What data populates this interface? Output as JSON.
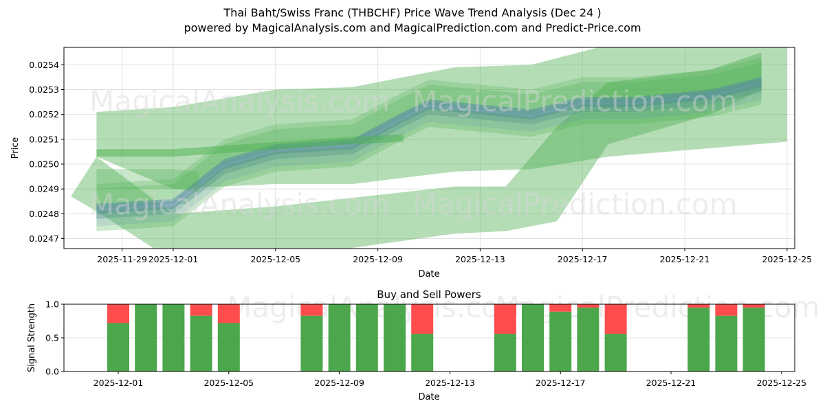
{
  "header": {
    "title": "Thai Baht/Swiss Franc (THBCHF) Price Wave Trend Analysis (Dec 24 )",
    "subtitle": "powered by MagicalAnalysis.com and MagicalPrediction.com and Predict-Price.com"
  },
  "watermarks": [
    "MagicalAnalysis.com",
    "MagicalPrediction.com"
  ],
  "colors": {
    "band_green": "#4caf50",
    "band_blue": "#6b7fe0",
    "buy": "#4ca64c",
    "sell": "#ff4c4c",
    "grid": "#e0e0e0"
  },
  "chart_data": [
    {
      "type": "area",
      "title": "",
      "xlabel": "Date",
      "ylabel": "Price",
      "ylim": [
        0.02466,
        0.02547
      ],
      "grid": true,
      "x_ticks": [
        "2025-11-29",
        "2025-12-01",
        "2025-12-05",
        "2025-12-09",
        "2025-12-13",
        "2025-12-17",
        "2025-12-21",
        "2025-12-25"
      ],
      "y_ticks": [
        "0.0247",
        "0.0248",
        "0.0249",
        "0.0250",
        "0.0251",
        "0.0252",
        "0.0253",
        "0.0254"
      ],
      "central_trend": {
        "dates": [
          "2025-11-28",
          "2025-12-01",
          "2025-12-03",
          "2025-12-05",
          "2025-12-08",
          "2025-12-10",
          "2025-12-11",
          "2025-12-15",
          "2025-12-17",
          "2025-12-19",
          "2025-12-22",
          "2025-12-24"
        ],
        "values": [
          0.02481,
          0.02483,
          0.02499,
          0.02505,
          0.02507,
          0.02518,
          0.02523,
          0.02519,
          0.02524,
          0.02524,
          0.02527,
          0.02532
        ]
      },
      "bands": [
        {
          "name": "wide-upper",
          "x": [
            "2025-11-28",
            "2025-12-01",
            "2025-12-05",
            "2025-12-08",
            "2025-12-12",
            "2025-12-15",
            "2025-12-18",
            "2025-12-25"
          ],
          "upper": [
            0.02521,
            0.02523,
            0.0253,
            0.02531,
            0.02539,
            0.0254,
            0.02548,
            0.02548
          ],
          "lower": [
            0.02503,
            0.0249,
            0.02492,
            0.02492,
            0.02497,
            0.02498,
            0.02503,
            0.02509
          ]
        },
        {
          "name": "wide-lower",
          "x": [
            "2025-11-27",
            "2025-11-28",
            "2025-12-01",
            "2025-12-05",
            "2025-12-12",
            "2025-12-14",
            "2025-12-16",
            "2025-12-18",
            "2025-12-22",
            "2025-12-24"
          ],
          "upper": [
            0.02487,
            0.02503,
            0.0248,
            0.02483,
            0.02491,
            0.02491,
            0.02515,
            0.02533,
            0.02538,
            0.02545
          ],
          "lower": [
            0.02487,
            0.02481,
            0.02461,
            0.02462,
            0.02472,
            0.02473,
            0.02477,
            0.02508,
            0.0252,
            0.0253
          ]
        }
      ]
    },
    {
      "type": "bar",
      "title": "Buy and Sell Powers",
      "xlabel": "Date",
      "ylabel": "Signal Strength",
      "ylim": [
        0.0,
        1.0
      ],
      "y_ticks": [
        "0.0",
        "0.5",
        "1.0"
      ],
      "x_ticks": [
        "2025-12-01",
        "2025-12-05",
        "2025-12-09",
        "2025-12-13",
        "2025-12-17",
        "2025-12-21",
        "2025-12-25"
      ],
      "categories": [
        "2025-12-01",
        "2025-12-02",
        "2025-12-03",
        "2025-12-04",
        "2025-12-05",
        "2025-12-08",
        "2025-12-09",
        "2025-12-10",
        "2025-12-11",
        "2025-12-12",
        "2025-12-15",
        "2025-12-16",
        "2025-12-17",
        "2025-12-18",
        "2025-12-19",
        "2025-12-22",
        "2025-12-23",
        "2025-12-24"
      ],
      "series": [
        {
          "name": "Buy",
          "color": "#4ca64c",
          "values": [
            0.72,
            1.0,
            1.0,
            0.83,
            0.72,
            0.83,
            1.0,
            1.0,
            1.0,
            0.56,
            0.56,
            1.0,
            0.89,
            0.95,
            0.56,
            0.95,
            0.83,
            0.95
          ]
        },
        {
          "name": "Sell",
          "color": "#ff4c4c",
          "values": [
            0.28,
            0.0,
            0.0,
            0.17,
            0.28,
            0.17,
            0.0,
            0.0,
            0.0,
            0.44,
            0.44,
            0.0,
            0.11,
            0.05,
            0.44,
            0.05,
            0.17,
            0.05
          ]
        }
      ]
    }
  ]
}
